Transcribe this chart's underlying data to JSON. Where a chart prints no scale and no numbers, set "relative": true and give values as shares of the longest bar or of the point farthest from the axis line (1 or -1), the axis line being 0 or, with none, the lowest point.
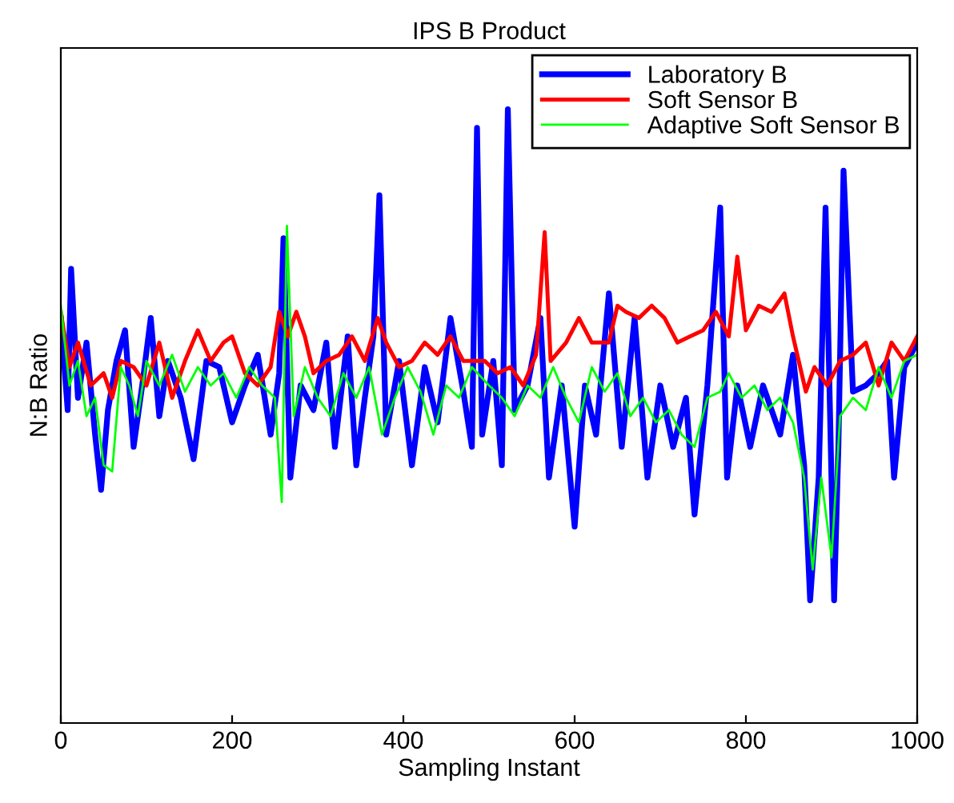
{
  "chart_data": {
    "type": "line",
    "title": "IPS B Product",
    "xlabel": "Sampling Instant",
    "ylabel": "N:B Ratio",
    "relative": true,
    "xlim": [
      0,
      1000
    ],
    "xticks": [
      0,
      200,
      400,
      600,
      800,
      1000
    ],
    "legend": "top right",
    "grid": false,
    "marker": "none",
    "line_style": "solid",
    "series": [
      {
        "name": "Laboratory B",
        "color": "#0000ff",
        "x": [
          0,
          8,
          12,
          20,
          30,
          40,
          47,
          55,
          65,
          75,
          85,
          95,
          105,
          115,
          125,
          140,
          155,
          170,
          185,
          200,
          215,
          230,
          245,
          255,
          260,
          268,
          280,
          295,
          310,
          320,
          335,
          345,
          355,
          365,
          372,
          380,
          395,
          410,
          425,
          440,
          455,
          470,
          480,
          486,
          492,
          505,
          515,
          522,
          530,
          545,
          560,
          570,
          585,
          600,
          612,
          625,
          640,
          655,
          670,
          685,
          700,
          715,
          730,
          740,
          755,
          770,
          778,
          790,
          805,
          820,
          840,
          855,
          868,
          875,
          885,
          893,
          903,
          908,
          914,
          925,
          940,
          955,
          965,
          973,
          985,
          1000
        ],
        "values": [
          0.66,
          0.51,
          0.74,
          0.53,
          0.62,
          0.47,
          0.38,
          0.51,
          0.59,
          0.64,
          0.45,
          0.55,
          0.66,
          0.5,
          0.59,
          0.53,
          0.43,
          0.59,
          0.58,
          0.49,
          0.55,
          0.6,
          0.47,
          0.57,
          0.79,
          0.4,
          0.55,
          0.51,
          0.62,
          0.45,
          0.63,
          0.42,
          0.53,
          0.63,
          0.86,
          0.47,
          0.59,
          0.42,
          0.58,
          0.49,
          0.66,
          0.54,
          0.45,
          0.97,
          0.47,
          0.59,
          0.42,
          1.0,
          0.51,
          0.55,
          0.66,
          0.4,
          0.55,
          0.32,
          0.55,
          0.47,
          0.7,
          0.45,
          0.66,
          0.4,
          0.55,
          0.45,
          0.53,
          0.34,
          0.55,
          0.84,
          0.4,
          0.55,
          0.45,
          0.55,
          0.47,
          0.6,
          0.42,
          0.2,
          0.4,
          0.84,
          0.2,
          0.45,
          0.9,
          0.54,
          0.55,
          0.57,
          0.59,
          0.4,
          0.58,
          0.62
        ]
      },
      {
        "name": "Soft Sensor B",
        "color": "#ff0000",
        "x": [
          0,
          10,
          20,
          35,
          50,
          60,
          70,
          85,
          100,
          115,
          130,
          145,
          160,
          175,
          190,
          200,
          215,
          230,
          245,
          255,
          265,
          275,
          285,
          295,
          310,
          325,
          340,
          355,
          370,
          380,
          395,
          410,
          425,
          440,
          455,
          470,
          480,
          495,
          510,
          525,
          540,
          555,
          565,
          572,
          590,
          605,
          620,
          640,
          650,
          660,
          675,
          690,
          705,
          720,
          735,
          750,
          765,
          780,
          790,
          800,
          815,
          830,
          845,
          855,
          870,
          880,
          895,
          910,
          925,
          940,
          955,
          970,
          985,
          1000
        ],
        "values": [
          0.67,
          0.58,
          0.62,
          0.55,
          0.57,
          0.53,
          0.59,
          0.58,
          0.55,
          0.62,
          0.53,
          0.59,
          0.64,
          0.59,
          0.62,
          0.63,
          0.57,
          0.55,
          0.58,
          0.67,
          0.63,
          0.67,
          0.63,
          0.57,
          0.59,
          0.6,
          0.63,
          0.59,
          0.66,
          0.62,
          0.58,
          0.59,
          0.62,
          0.6,
          0.63,
          0.59,
          0.59,
          0.59,
          0.57,
          0.58,
          0.55,
          0.6,
          0.8,
          0.59,
          0.62,
          0.66,
          0.62,
          0.62,
          0.68,
          0.67,
          0.66,
          0.68,
          0.66,
          0.62,
          0.63,
          0.64,
          0.67,
          0.63,
          0.76,
          0.64,
          0.68,
          0.67,
          0.7,
          0.63,
          0.54,
          0.58,
          0.55,
          0.59,
          0.6,
          0.62,
          0.55,
          0.62,
          0.59,
          0.63
        ]
      },
      {
        "name": "Adaptive Soft Sensor B",
        "color": "#00ff00",
        "x": [
          0,
          10,
          20,
          30,
          40,
          50,
          60,
          70,
          80,
          90,
          100,
          115,
          130,
          145,
          160,
          175,
          190,
          205,
          220,
          235,
          250,
          258,
          264,
          272,
          285,
          300,
          315,
          330,
          345,
          360,
          375,
          390,
          405,
          420,
          435,
          450,
          465,
          480,
          500,
          515,
          530,
          545,
          560,
          575,
          590,
          605,
          620,
          635,
          650,
          665,
          680,
          695,
          710,
          725,
          740,
          755,
          770,
          780,
          795,
          810,
          825,
          840,
          855,
          868,
          878,
          888,
          900,
          910,
          925,
          940,
          955,
          970,
          985,
          1000
        ],
        "values": [
          0.68,
          0.55,
          0.59,
          0.5,
          0.53,
          0.42,
          0.41,
          0.58,
          0.55,
          0.5,
          0.59,
          0.55,
          0.6,
          0.54,
          0.58,
          0.55,
          0.57,
          0.53,
          0.58,
          0.55,
          0.53,
          0.36,
          0.81,
          0.5,
          0.58,
          0.53,
          0.5,
          0.57,
          0.53,
          0.58,
          0.47,
          0.53,
          0.58,
          0.54,
          0.47,
          0.55,
          0.53,
          0.58,
          0.55,
          0.53,
          0.5,
          0.55,
          0.53,
          0.58,
          0.53,
          0.49,
          0.58,
          0.54,
          0.57,
          0.5,
          0.53,
          0.49,
          0.51,
          0.47,
          0.45,
          0.53,
          0.54,
          0.57,
          0.53,
          0.55,
          0.51,
          0.53,
          0.49,
          0.4,
          0.25,
          0.4,
          0.27,
          0.5,
          0.53,
          0.51,
          0.58,
          0.53,
          0.59,
          0.6
        ]
      }
    ]
  }
}
